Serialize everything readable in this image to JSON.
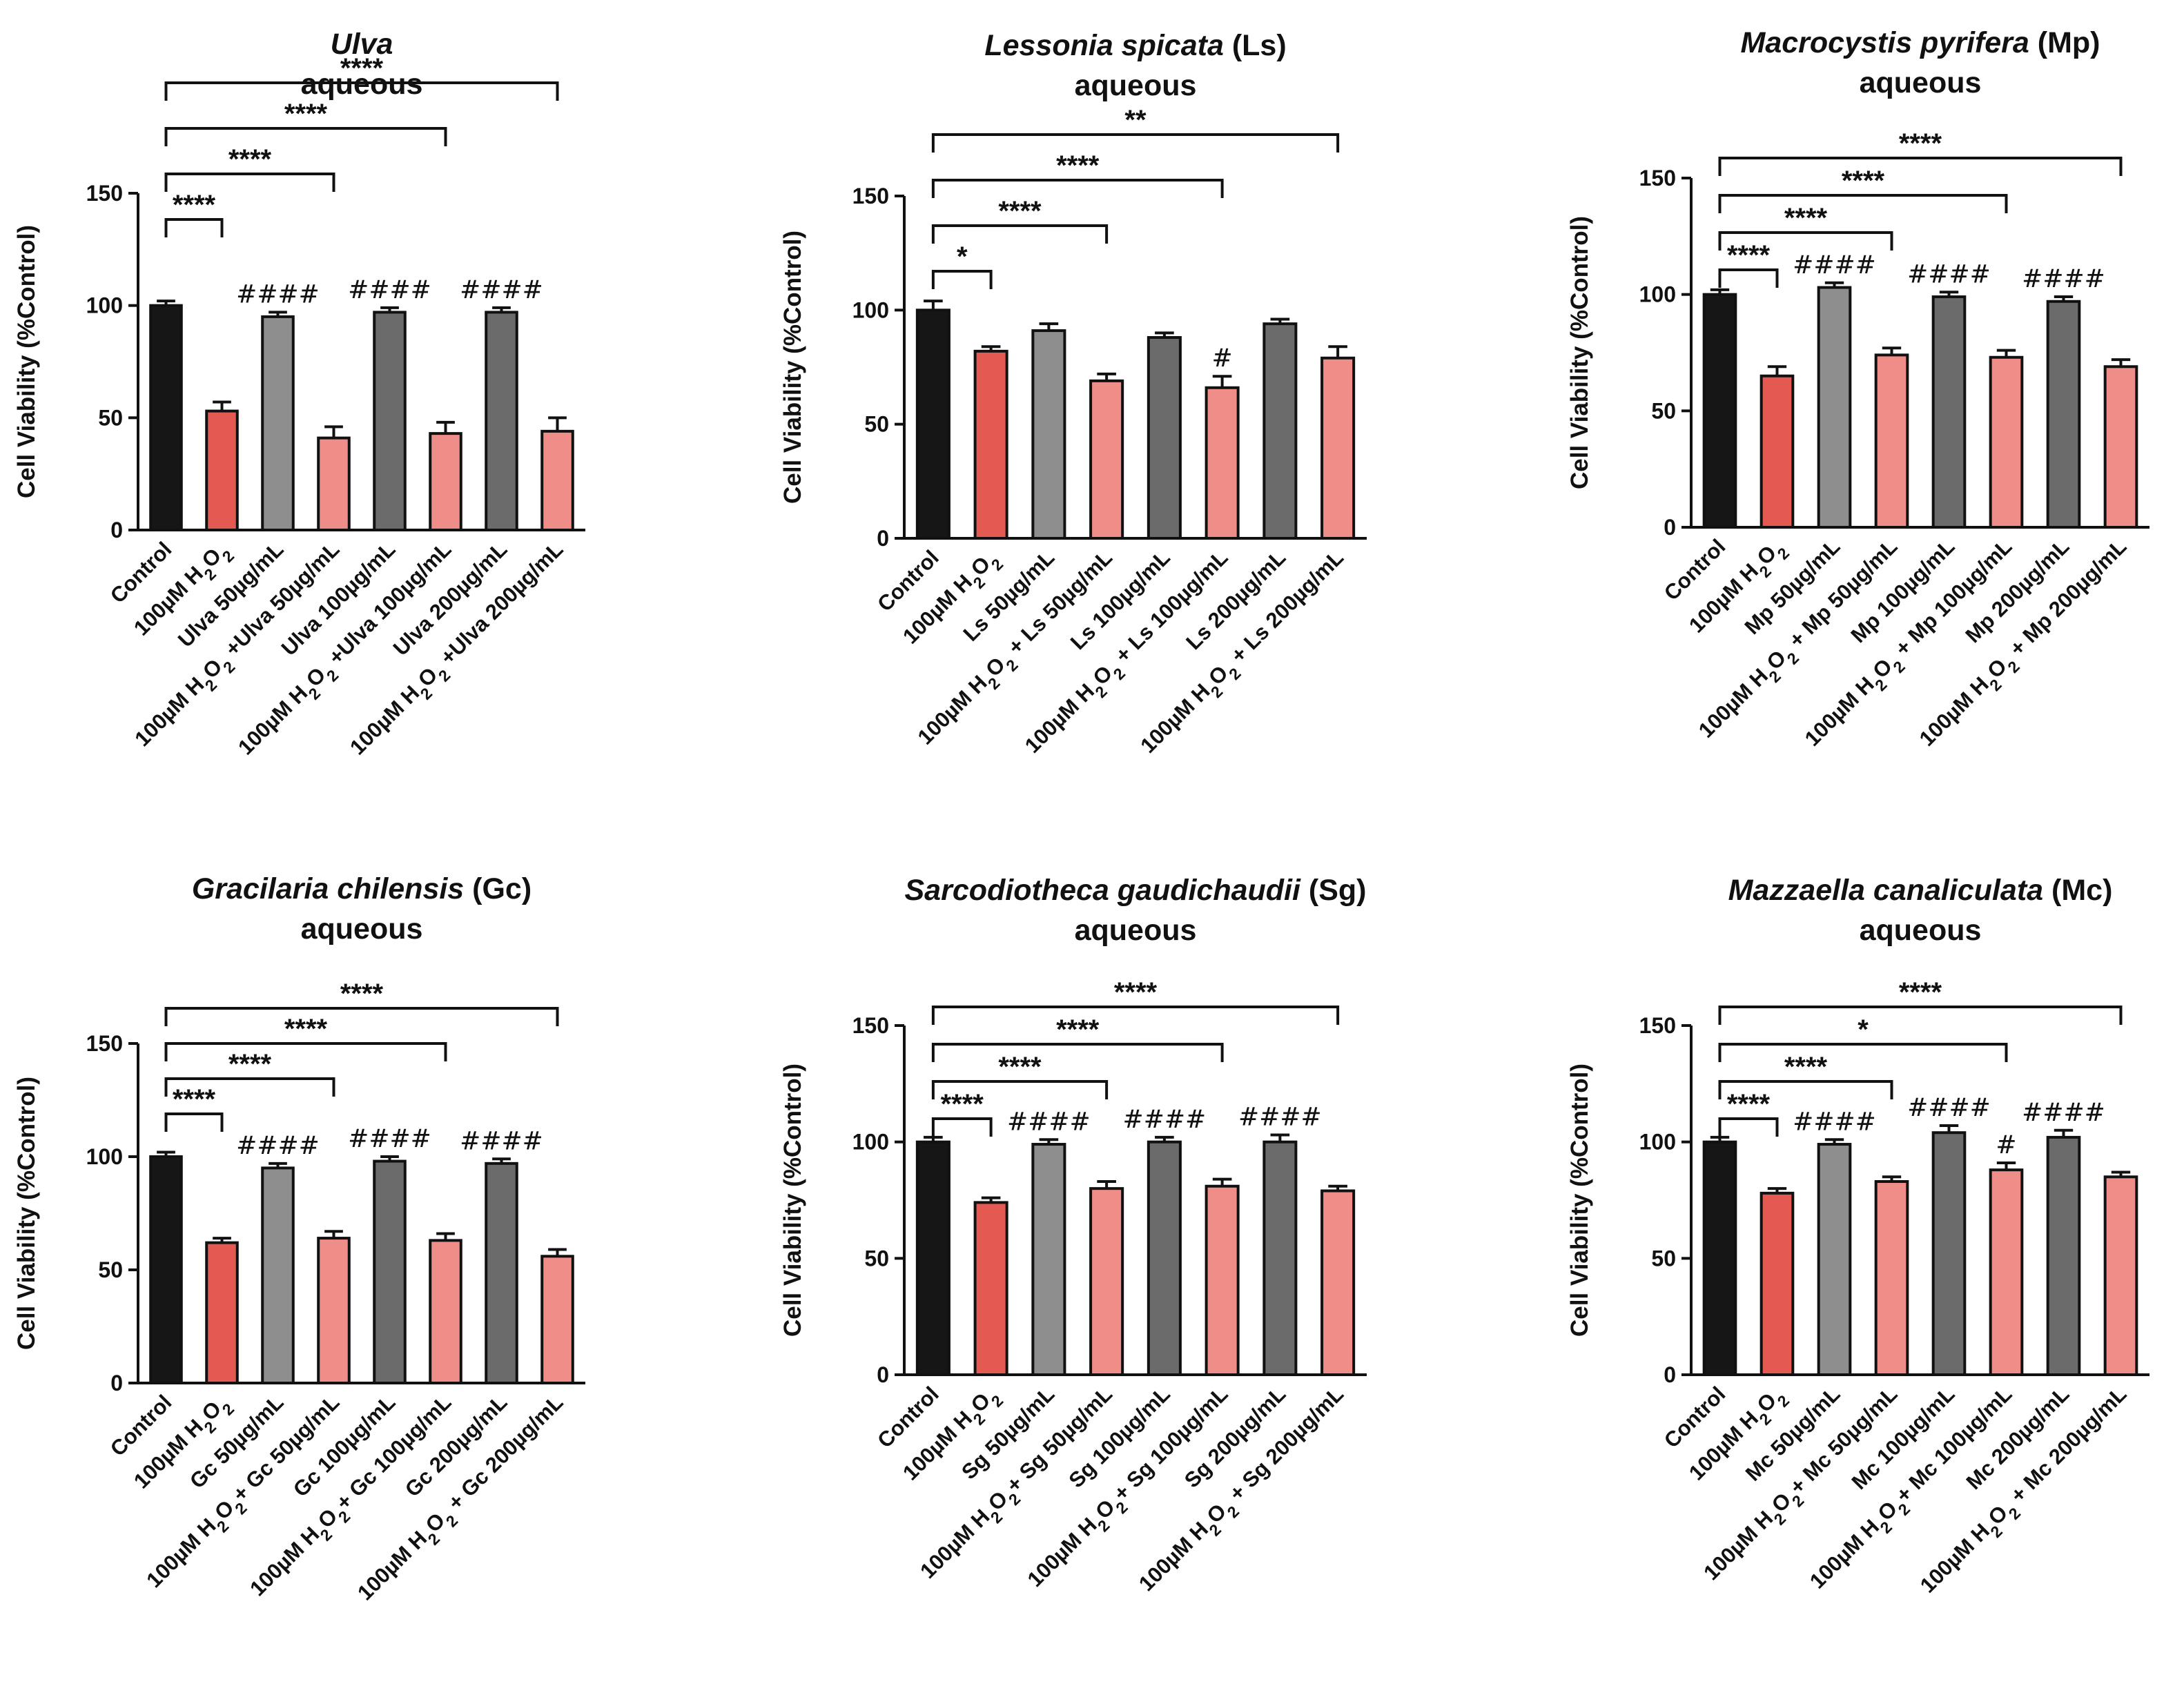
{
  "colors": {
    "control": "#161616",
    "h2o2": "#E45A52",
    "extract_light": "#8E8E8E",
    "extract_dark": "#6A6B6A",
    "combo": "#EF8D89"
  },
  "chart_data": [
    {
      "type": "bar",
      "title": "Ulva",
      "title_suffix": "",
      "subtitle": "aqueous",
      "ylabel": "Cell Viability (%Control)",
      "ylim": [
        0,
        150
      ],
      "yticks": [
        0,
        50,
        100,
        150
      ],
      "categories": [
        "Control",
        "100µM H2O2",
        "Ulva 50µg/mL",
        "100µM H2O2 +Ulva 50µg/mL",
        "Ulva 100µg/mL",
        "100µM H2O2 +Ulva 100µg/mL",
        "Ulva 200µg/mL",
        "100µM H2O2 +Ulva 200µg/mL"
      ],
      "values": [
        100,
        53,
        95,
        41,
        97,
        43,
        97,
        44
      ],
      "errors": [
        2,
        4,
        2,
        5,
        2,
        5,
        2,
        6
      ],
      "bar_colors": [
        "control",
        "h2o2",
        "extract_light",
        "combo",
        "extract_dark",
        "combo",
        "extract_dark",
        "combo"
      ],
      "hash_marks": [
        null,
        null,
        "####",
        null,
        "####",
        null,
        "####",
        null
      ],
      "brackets": [
        {
          "from": 0,
          "to": 1,
          "label": "****"
        },
        {
          "from": 0,
          "to": 3,
          "label": "****"
        },
        {
          "from": 0,
          "to": 5,
          "label": "****"
        },
        {
          "from": 0,
          "to": 7,
          "label": "****"
        }
      ]
    },
    {
      "type": "bar",
      "title": "Lessonia spicata",
      "title_suffix": "(Ls)",
      "subtitle": "aqueous",
      "ylabel": "Cell Viability (%Control)",
      "ylim": [
        0,
        150
      ],
      "yticks": [
        0,
        50,
        100,
        150
      ],
      "categories": [
        "Control",
        "100µM H2O2",
        "Ls 50µg/mL",
        "100µM H2O2 + Ls 50µg/mL",
        "Ls 100µg/mL",
        "100µM H2O2 + Ls 100µg/mL",
        "Ls 200µg/mL",
        "100µM H2O2 + Ls 200µg/mL"
      ],
      "values": [
        100,
        82,
        91,
        69,
        88,
        66,
        94,
        79
      ],
      "errors": [
        4,
        2,
        3,
        3,
        2,
        5,
        2,
        5
      ],
      "bar_colors": [
        "control",
        "h2o2",
        "extract_light",
        "combo",
        "extract_dark",
        "combo",
        "extract_dark",
        "combo"
      ],
      "hash_marks": [
        null,
        null,
        null,
        null,
        null,
        "#",
        null,
        null
      ],
      "brackets": [
        {
          "from": 0,
          "to": 1,
          "label": "*"
        },
        {
          "from": 0,
          "to": 3,
          "label": "****"
        },
        {
          "from": 0,
          "to": 5,
          "label": "****"
        },
        {
          "from": 0,
          "to": 7,
          "label": "**"
        }
      ]
    },
    {
      "type": "bar",
      "title": "Macrocystis pyrifera",
      "title_suffix": "(Mp)",
      "subtitle": "aqueous",
      "ylabel": "Cell Viability (%Control)",
      "ylim": [
        0,
        150
      ],
      "yticks": [
        0,
        50,
        100,
        150
      ],
      "categories": [
        "Control",
        "100µM H2O2",
        "Mp 50µg/mL",
        "100µM H2O2 + Mp 50µg/mL",
        "Mp 100µg/mL",
        "100µM H2O2 + Mp 100µg/mL",
        "Mp 200µg/mL",
        "100µM H2O2 + Mp 200µg/mL"
      ],
      "values": [
        100,
        65,
        103,
        74,
        99,
        73,
        97,
        69
      ],
      "errors": [
        2,
        4,
        2,
        3,
        2,
        3,
        2,
        3
      ],
      "bar_colors": [
        "control",
        "h2o2",
        "extract_light",
        "combo",
        "extract_dark",
        "combo",
        "extract_dark",
        "combo"
      ],
      "hash_marks": [
        null,
        null,
        "####",
        null,
        "####",
        null,
        "####",
        null
      ],
      "brackets": [
        {
          "from": 0,
          "to": 1,
          "label": "****"
        },
        {
          "from": 0,
          "to": 3,
          "label": "****"
        },
        {
          "from": 0,
          "to": 5,
          "label": "****"
        },
        {
          "from": 0,
          "to": 7,
          "label": "****"
        }
      ]
    },
    {
      "type": "bar",
      "title": "Gracilaria chilensis",
      "title_suffix": "(Gc)",
      "subtitle": "aqueous",
      "ylabel": "Cell Viability (%Control)",
      "ylim": [
        0,
        150
      ],
      "yticks": [
        0,
        50,
        100,
        150
      ],
      "categories": [
        "Control",
        "100µM H2O2",
        "Gc 50µg/mL",
        "100µM H2O2+ Gc 50µg/mL",
        "Gc 100µg/mL",
        "100µM H2O2+ Gc 100µg/mL",
        "Gc 200µg/mL",
        "100µM H2O2 + Gc 200µg/mL"
      ],
      "values": [
        100,
        62,
        95,
        64,
        98,
        63,
        97,
        56
      ],
      "errors": [
        2,
        2,
        2,
        3,
        2,
        3,
        2,
        3
      ],
      "bar_colors": [
        "control",
        "h2o2",
        "extract_light",
        "combo",
        "extract_dark",
        "combo",
        "extract_dark",
        "combo"
      ],
      "hash_marks": [
        null,
        null,
        "####",
        null,
        "####",
        null,
        "####",
        null
      ],
      "brackets": [
        {
          "from": 0,
          "to": 1,
          "label": "****"
        },
        {
          "from": 0,
          "to": 3,
          "label": "****"
        },
        {
          "from": 0,
          "to": 5,
          "label": "****"
        },
        {
          "from": 0,
          "to": 7,
          "label": "****"
        }
      ]
    },
    {
      "type": "bar",
      "title": "Sarcodiotheca gaudichaudii",
      "title_suffix": "(Sg)",
      "subtitle": "aqueous",
      "ylabel": "Cell Viability (%Control)",
      "ylim": [
        0,
        150
      ],
      "yticks": [
        0,
        50,
        100,
        150
      ],
      "categories": [
        "Control",
        "100µM H2O2",
        "Sg 50µg/mL",
        "100µM H2O2+ Sg 50µg/mL",
        "Sg 100µg/mL",
        "100µM H2O2+ Sg 100µg/mL",
        "Sg 200µg/mL",
        "100µM H2O2 + Sg 200µg/mL"
      ],
      "values": [
        100,
        74,
        99,
        80,
        100,
        81,
        100,
        79
      ],
      "errors": [
        2,
        2,
        2,
        3,
        2,
        3,
        3,
        2
      ],
      "bar_colors": [
        "control",
        "h2o2",
        "extract_light",
        "combo",
        "extract_dark",
        "combo",
        "extract_dark",
        "combo"
      ],
      "hash_marks": [
        null,
        null,
        "####",
        null,
        "####",
        null,
        "####",
        null
      ],
      "brackets": [
        {
          "from": 0,
          "to": 1,
          "label": "****"
        },
        {
          "from": 0,
          "to": 3,
          "label": "****"
        },
        {
          "from": 0,
          "to": 5,
          "label": "****"
        },
        {
          "from": 0,
          "to": 7,
          "label": "****"
        }
      ]
    },
    {
      "type": "bar",
      "title": "Mazzaella canaliculata",
      "title_suffix": "(Mc)",
      "subtitle": "aqueous",
      "ylabel": "Cell Viability (%Control)",
      "ylim": [
        0,
        150
      ],
      "yticks": [
        0,
        50,
        100,
        150
      ],
      "categories": [
        "Control",
        "100µM H2O2",
        "Mc 50µg/mL",
        "100µM H2O2+ Mc 50µg/mL",
        "Mc 100µg/mL",
        "100µM H2O2+ Mc 100µg/mL",
        "Mc 200µg/mL",
        "100µM H2O2 + Mc 200µg/mL"
      ],
      "values": [
        100,
        78,
        99,
        83,
        104,
        88,
        102,
        85
      ],
      "errors": [
        2,
        2,
        2,
        2,
        3,
        3,
        3,
        2
      ],
      "bar_colors": [
        "control",
        "h2o2",
        "extract_light",
        "combo",
        "extract_dark",
        "combo",
        "extract_dark",
        "combo"
      ],
      "hash_marks": [
        null,
        null,
        "####",
        null,
        "####",
        "#",
        "####",
        null
      ],
      "brackets": [
        {
          "from": 0,
          "to": 1,
          "label": "****"
        },
        {
          "from": 0,
          "to": 3,
          "label": "****"
        },
        {
          "from": 0,
          "to": 5,
          "label": "*"
        },
        {
          "from": 0,
          "to": 7,
          "label": "****"
        }
      ]
    }
  ]
}
